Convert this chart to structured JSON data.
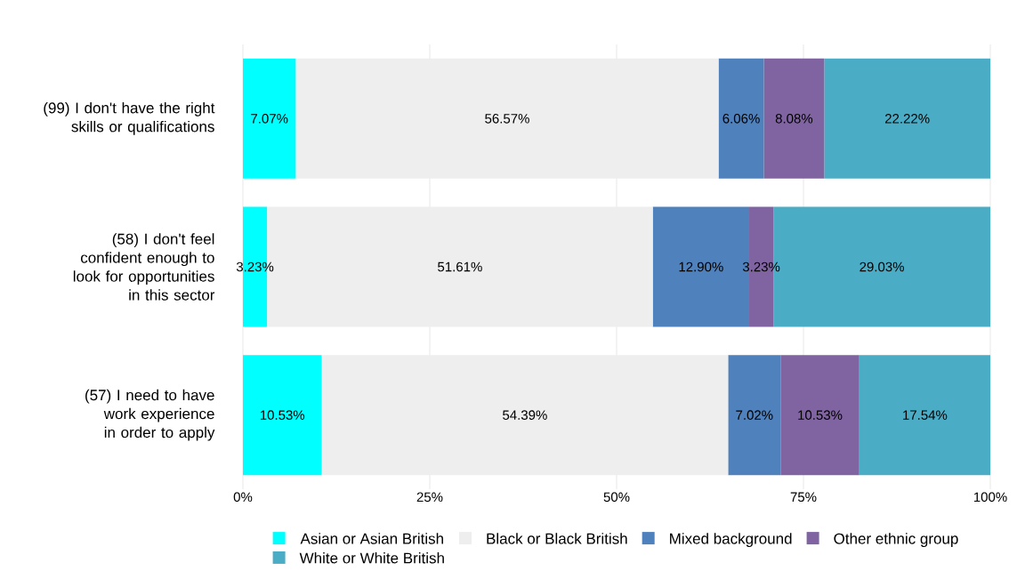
{
  "chart_data": {
    "type": "bar",
    "orientation": "horizontal",
    "stacked": true,
    "categories": [
      "(99) I don't have the right skills or qualifications",
      "(58) I don't feel confident enough to look for opportunities in this sector",
      "(57) I need to have work experience in order to apply"
    ],
    "series": [
      {
        "name": "Asian or Asian British",
        "color": "#00ffff",
        "values": [
          7.07,
          3.23,
          10.53
        ],
        "value_labels": [
          "7.07%",
          "3.23%",
          "10.53%"
        ]
      },
      {
        "name": "Black or Black British",
        "color": "#eeeeee",
        "values": [
          56.57,
          51.61,
          54.39
        ],
        "value_labels": [
          "56.57%",
          "51.61%",
          "54.39%"
        ]
      },
      {
        "name": "Mixed background",
        "color": "#4f81bd",
        "values": [
          6.06,
          12.9,
          7.02
        ],
        "value_labels": [
          "6.06%",
          "12.90%",
          "7.02%"
        ]
      },
      {
        "name": "Other ethnic group",
        "color": "#8064a2",
        "values": [
          8.08,
          3.23,
          10.53
        ],
        "value_labels": [
          "8.08%",
          "3.23%",
          "10.53%"
        ]
      },
      {
        "name": "White or White British",
        "color": "#4bacc6",
        "values": [
          22.22,
          29.03,
          17.54
        ],
        "value_labels": [
          "22.22%",
          "29.03%",
          "17.54%"
        ]
      }
    ],
    "xlim": [
      0,
      100
    ],
    "xticks": [
      {
        "value": 0,
        "label": "0%"
      },
      {
        "value": 25,
        "label": "25%"
      },
      {
        "value": 50,
        "label": "50%"
      },
      {
        "value": 75,
        "label": "75%"
      },
      {
        "value": 100,
        "label": "100%"
      }
    ],
    "grid": "x",
    "legend": "bottom"
  }
}
